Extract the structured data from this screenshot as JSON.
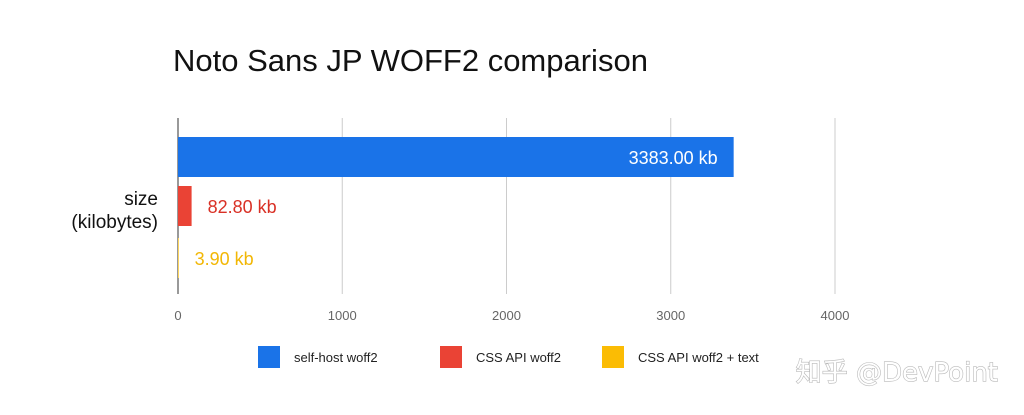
{
  "chart_data": {
    "type": "bar",
    "orientation": "horizontal",
    "title": "Noto Sans JP WOFF2 comparison",
    "ylabel_lines": [
      "size",
      "(kilobytes)"
    ],
    "categories": [
      "size (kilobytes)"
    ],
    "series": [
      {
        "name": "self-host woff2",
        "values": [
          3383.0
        ],
        "label": "3383.00 kb",
        "color": "#1a73e8",
        "label_color": "#ffffff",
        "label_position": "inside-end"
      },
      {
        "name": "CSS API woff2",
        "values": [
          82.8
        ],
        "label": "82.80 kb",
        "color": "#ea4335",
        "label_color": "#d93025",
        "label_position": "outside-end"
      },
      {
        "name": "CSS API woff2 + text",
        "values": [
          3.9
        ],
        "label": "3.90 kb",
        "color": "#fbbc04",
        "label_color": "#f2b705",
        "label_position": "outside-end"
      }
    ],
    "xlim": [
      0,
      4000
    ],
    "xticks": [
      "0",
      "1000",
      "2000",
      "3000",
      "4000"
    ],
    "grid": true,
    "legend_position": "bottom"
  },
  "watermark": "知乎 @DevPoint"
}
